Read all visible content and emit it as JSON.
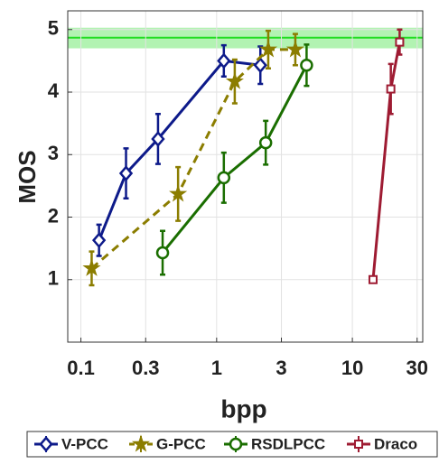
{
  "chart_data": {
    "type": "line",
    "xlabel": "bpp",
    "ylabel": "MOS",
    "xscale": "log",
    "xlim": [
      0.08,
      33
    ],
    "ylim": [
      0,
      5.3
    ],
    "xticks": [
      0.1,
      0.3,
      1,
      3,
      10,
      30
    ],
    "yticks": [
      1,
      2,
      3,
      4,
      5
    ],
    "grid": true,
    "legend": "bottom",
    "reference": {
      "value": 4.87,
      "band": [
        4.7,
        5.03
      ],
      "color": "#22dd22"
    },
    "series": [
      {
        "name": "V-PCC",
        "color": "#0d1a8a",
        "marker": "diamond",
        "dash": false,
        "x": [
          0.136,
          0.215,
          0.37,
          1.13,
          2.1
        ],
        "values": [
          1.63,
          2.7,
          3.25,
          4.5,
          4.43
        ],
        "errors": [
          0.25,
          0.4,
          0.4,
          0.25,
          0.3
        ]
      },
      {
        "name": "G-PCC",
        "color": "#8b7d00",
        "marker": "star",
        "dash": true,
        "x": [
          0.12,
          0.52,
          1.36,
          2.4,
          3.8
        ],
        "values": [
          1.18,
          2.37,
          4.17,
          4.68,
          4.68
        ],
        "errors": [
          0.27,
          0.43,
          0.35,
          0.3,
          0.25
        ]
      },
      {
        "name": "RSDLPCC",
        "color": "#1a6e00",
        "marker": "circle",
        "dash": false,
        "x": [
          0.4,
          1.13,
          2.3,
          4.6
        ],
        "values": [
          1.43,
          2.63,
          3.19,
          4.43
        ],
        "errors": [
          0.35,
          0.4,
          0.35,
          0.33
        ]
      },
      {
        "name": "Draco",
        "color": "#9e1b32",
        "marker": "square",
        "dash": false,
        "x": [
          14.2,
          19.2,
          22.3
        ],
        "values": [
          1.0,
          4.05,
          4.8
        ],
        "errors": [
          0.0,
          0.4,
          0.2
        ]
      }
    ]
  }
}
